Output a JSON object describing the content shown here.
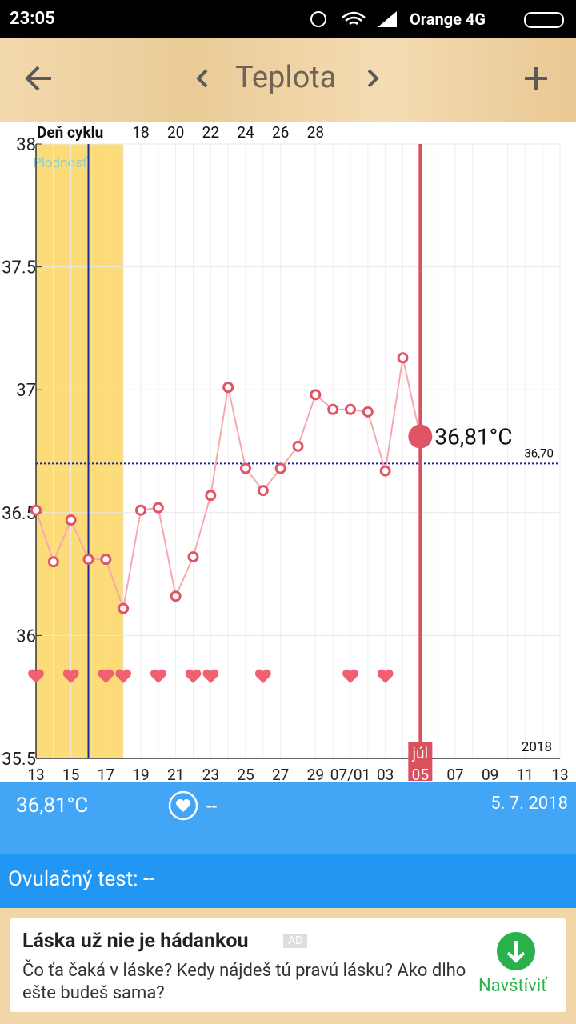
{
  "status_bar": {
    "time": "23:05",
    "carrier": "Orange 4G"
  },
  "header": {
    "title": "Teplota"
  },
  "chart_data": {
    "type": "line",
    "cycle_axis_label": "Deň cyklu",
    "cycle_ticks": [
      {
        "value": 6,
        "label": "18"
      },
      {
        "value": 8,
        "label": "20"
      },
      {
        "value": 10,
        "label": "22"
      },
      {
        "value": 12,
        "label": "24"
      },
      {
        "value": 14,
        "label": "26"
      },
      {
        "value": 16,
        "label": "28"
      }
    ],
    "categories": [
      "13",
      null,
      "15",
      null,
      "17",
      null,
      "19",
      null,
      "21",
      null,
      "23",
      null,
      "25",
      null,
      "27",
      null,
      "29",
      null,
      "07/01",
      null,
      "03",
      null,
      "05",
      null,
      "07",
      null,
      "09",
      null,
      "11",
      null,
      "13"
    ],
    "values": [
      36.51,
      36.3,
      36.47,
      36.31,
      36.31,
      36.11,
      36.51,
      36.52,
      36.16,
      36.32,
      36.57,
      37.01,
      36.68,
      36.59,
      36.68,
      36.77,
      36.98,
      36.92,
      36.92,
      36.91,
      36.67,
      37.13,
      36.81,
      null,
      null,
      null,
      null,
      null,
      null,
      null,
      null
    ],
    "color": "#e05565",
    "ylim": [
      35.5,
      38
    ],
    "yticks": [
      35.5,
      36,
      36.5,
      37,
      37.5,
      38
    ],
    "grid": true,
    "fertile_label": "Plodnosť",
    "fertile_window": [
      0,
      5
    ],
    "ovulation_day": 3,
    "today": 22,
    "today_month": "júl",
    "today_value_label": "36,81°C",
    "coverline": 36.7,
    "coverline_label": "36,70",
    "year": "2018",
    "hearts": [
      0,
      2,
      4,
      5,
      7,
      9,
      10,
      13,
      18,
      20
    ]
  },
  "info": {
    "temperature": "36,81°C",
    "intercourse": "--",
    "date": "5. 7. 2018",
    "ovulation_test": "Ovulačný test: --"
  },
  "ad": {
    "title": "Láska už nie je hádankou",
    "badge": "AD",
    "text": "Čo ťa čaká v láske? Kedy nájdeš tú pravú lásku? Ako dlho ešte budeš sama?",
    "cta": "Navštíviť"
  }
}
